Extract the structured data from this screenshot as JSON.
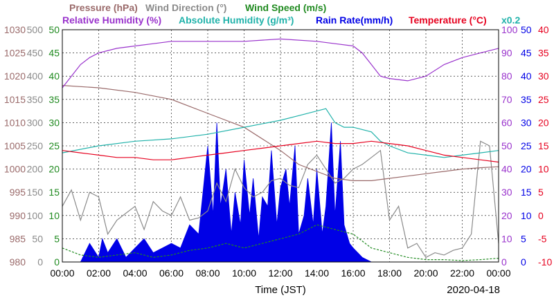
{
  "chart_data": {
    "type": "line",
    "legend_row1": [
      "Pressure (hPa)",
      "Wind Direction (°)",
      "Wind Speed (m/s)"
    ],
    "legend_row2": [
      "Relative Humidity (%)",
      "Absolute Humidity (g/m³)",
      "Rain Rate(mm/h)",
      "Temperature (°C)"
    ],
    "scale_note": "x0.2",
    "xlabel": "Time (JST)",
    "date": "2020-04-18",
    "x_ticks": [
      "00:00",
      "02:00",
      "04:00",
      "06:00",
      "08:00",
      "10:00",
      "12:00",
      "14:00",
      "16:00",
      "18:00",
      "20:00",
      "22:00",
      "00:00"
    ],
    "axes": {
      "pressure": {
        "ticks": [
          "1030",
          "1025",
          "1020",
          "1015",
          "1010",
          "1005",
          "1000",
          "995",
          "990",
          "985",
          "980"
        ],
        "range": [
          980,
          1030
        ]
      },
      "wind_direction": {
        "ticks": [
          "500",
          "450",
          "400",
          "350",
          "300",
          "250",
          "200",
          "150",
          "100",
          "50",
          "0"
        ],
        "range": [
          0,
          500
        ]
      },
      "wind_speed": {
        "ticks": [
          "50",
          "45",
          "40",
          "35",
          "30",
          "25",
          "20",
          "15",
          "10",
          "5",
          "0"
        ],
        "range": [
          0,
          50
        ]
      },
      "relative_humidity": {
        "ticks": [
          "100",
          "90",
          "80",
          "70",
          "60",
          "50",
          "40",
          "30",
          "20",
          "10",
          "0"
        ],
        "range": [
          0,
          100
        ]
      },
      "rain_rate": {
        "ticks": [
          "50",
          "45",
          "40",
          "35",
          "30",
          "25",
          "20",
          "15",
          "10",
          "5",
          "0"
        ],
        "range": [
          0,
          50
        ]
      },
      "temperature": {
        "ticks": [
          "40",
          "35",
          "30",
          "25",
          "20",
          "15",
          "10",
          "5",
          "0",
          "-5",
          "-10"
        ],
        "range": [
          -10,
          40
        ]
      }
    },
    "colors": {
      "pressure": "#9a6a6a",
      "wind_direction": "#8a8a8a",
      "wind_speed": "#1f8a1f",
      "relative_humidity": "#9932cc",
      "absolute_humidity": "#20b2aa",
      "rain_rate": "#0000e6",
      "temperature": "#e6001e"
    },
    "series": [
      {
        "name": "Pressure (hPa)",
        "axis": "pressure",
        "x": [
          0,
          2,
          4,
          6,
          8,
          10,
          12,
          13,
          14,
          15,
          16,
          17,
          18,
          19,
          20,
          21,
          22,
          23,
          24
        ],
        "values": [
          1018,
          1017.5,
          1016.5,
          1015,
          1012,
          1009,
          1004,
          1001,
          999.5,
          998,
          997.5,
          997.5,
          998,
          998.5,
          999,
          999.5,
          1000,
          1000.3,
          1000.5
        ]
      },
      {
        "name": "Wind Direction (°)",
        "axis": "wind_direction",
        "x": [
          0,
          0.5,
          1,
          1.5,
          2,
          2.5,
          3,
          3.5,
          4,
          4.5,
          5,
          5.5,
          6,
          6.5,
          7,
          7.5,
          8,
          8.5,
          9,
          9.5,
          10,
          10.5,
          11,
          11.5,
          12,
          12.5,
          13,
          13.5,
          14,
          14.5,
          15,
          15.5,
          16,
          16.5,
          17,
          17.5,
          18,
          18.5,
          19,
          19.5,
          20,
          20.5,
          21,
          21.5,
          22,
          22.5,
          23,
          23.5,
          24
        ],
        "values": [
          120,
          155,
          90,
          150,
          140,
          60,
          90,
          105,
          120,
          70,
          130,
          110,
          100,
          140,
          90,
          95,
          110,
          170,
          130,
          200,
          160,
          140,
          150,
          175,
          180,
          165,
          160,
          210,
          230,
          200,
          170,
          180,
          200,
          210,
          225,
          240,
          90,
          120,
          30,
          40,
          10,
          20,
          15,
          25,
          30,
          60,
          260,
          250,
          40
        ]
      },
      {
        "name": "Wind Speed (m/s)",
        "axis": "wind_speed",
        "x": [
          0,
          1,
          2,
          3,
          4,
          5,
          6,
          7,
          8,
          9,
          10,
          11,
          12,
          13,
          14,
          15,
          16,
          17,
          18,
          19,
          20,
          21,
          22,
          23,
          24
        ],
        "values": [
          3,
          1.5,
          1,
          1.5,
          2,
          1,
          1.5,
          2.5,
          3,
          4,
          3,
          4,
          5,
          6,
          8,
          7,
          6,
          3,
          2,
          1,
          0.5,
          0.5,
          0.3,
          0.5,
          0.8
        ]
      },
      {
        "name": "Relative Humidity (%)",
        "axis": "relative_humidity",
        "x": [
          0,
          0.5,
          1,
          1.5,
          2,
          3,
          4,
          5,
          6,
          8,
          10,
          12,
          14,
          15,
          16,
          16.5,
          17,
          17.5,
          18,
          19,
          20,
          21,
          22,
          23,
          24
        ],
        "values": [
          75,
          80,
          85,
          88,
          90,
          92,
          93,
          94,
          95,
          95,
          95,
          96,
          95,
          94,
          93,
          90,
          85,
          80,
          79,
          78,
          80,
          85,
          88,
          90,
          92
        ]
      },
      {
        "name": "Absolute Humidity (g/m³)",
        "axis": "relative_humidity",
        "x": [
          0,
          2,
          4,
          6,
          8,
          10,
          12,
          13,
          14,
          14.5,
          15,
          15.5,
          16,
          17,
          17.5,
          18,
          19,
          20,
          21,
          22,
          23,
          24
        ],
        "values": [
          47,
          50,
          52,
          53,
          55,
          58,
          61,
          63,
          65,
          66,
          60,
          58,
          58,
          56,
          52,
          50,
          47,
          46,
          45,
          46,
          47,
          48
        ]
      },
      {
        "name": "Rain Rate(mm/h)",
        "axis": "rain_rate",
        "x": [
          0,
          1,
          1.5,
          2,
          2.2,
          2.5,
          3,
          3.5,
          4,
          4.5,
          5,
          5.5,
          6,
          6.5,
          7,
          7.5,
          8,
          8.3,
          8.5,
          8.7,
          9,
          9.3,
          9.5,
          9.8,
          10,
          10.3,
          10.5,
          10.8,
          11,
          11.3,
          11.5,
          11.8,
          12,
          12.3,
          12.5,
          12.8,
          13,
          13.3,
          13.5,
          13.8,
          14,
          14.3,
          14.5,
          14.8,
          15,
          15.3,
          15.5,
          15.8,
          16,
          16.5,
          17
        ],
        "values": [
          0,
          0,
          4,
          1,
          5,
          2,
          5,
          1,
          3,
          5,
          2,
          3,
          4,
          3,
          8,
          6,
          25,
          10,
          30,
          12,
          20,
          6,
          15,
          8,
          22,
          10,
          18,
          5,
          14,
          12,
          24,
          8,
          16,
          20,
          12,
          25,
          6,
          10,
          18,
          8,
          20,
          6,
          12,
          30,
          10,
          26,
          8,
          4,
          3,
          1,
          0
        ]
      },
      {
        "name": "Temperature (°C)",
        "axis": "temperature",
        "x": [
          0,
          1,
          2,
          3,
          4,
          5,
          6,
          7,
          8,
          9,
          10,
          11,
          12,
          13,
          14,
          15,
          16,
          17,
          18,
          19,
          20,
          21,
          22,
          23,
          24
        ],
        "values": [
          14,
          13.5,
          13,
          12.5,
          12.5,
          12,
          12,
          12.5,
          13,
          13.5,
          14,
          14.5,
          15,
          15.5,
          16,
          15.5,
          15.5,
          16,
          15.5,
          15,
          14,
          13,
          12.5,
          12,
          11.5
        ]
      }
    ]
  }
}
